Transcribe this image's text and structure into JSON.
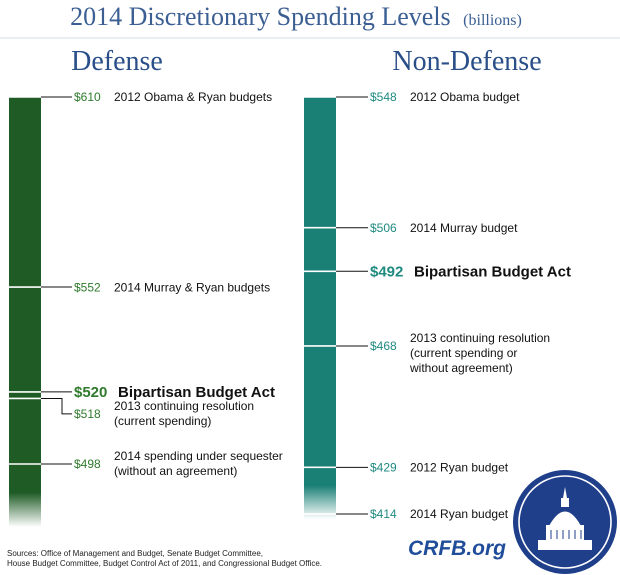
{
  "header": {
    "title": "2014 Discretionary Spending Levels",
    "title_unit": "(billions)"
  },
  "footer": {
    "sources_line1": "Sources: Office of Management and Budget, Senate Budget Committee,",
    "sources_line2": "House Budget Committee, Budget Control Act of 2011, and Congressional Budget Office.",
    "brand": "CRFB.org"
  },
  "colors": {
    "title": "#3b5f93",
    "panel_heading": "#2a4f88",
    "defense_bar": "#1e5b25",
    "defense_value": "#2f7a2c",
    "nondefense_bar": "#1a7f75",
    "nondefense_value": "#1f8a80",
    "brand": "#1f4d99",
    "seal": "#1f3f8a"
  },
  "icons": {
    "seal": "capitol-dome-icon"
  },
  "chart_data": [
    {
      "type": "bar",
      "name": "Defense",
      "unit": "billions",
      "ylim": [
        498,
        610
      ],
      "markers": [
        {
          "value": 610,
          "label": "$610",
          "text": [
            "2012 Obama & Ryan budgets"
          ],
          "bold": false
        },
        {
          "value": 552,
          "label": "$552",
          "text": [
            "2014 Murray & Ryan budgets"
          ],
          "bold": false
        },
        {
          "value": 520,
          "label": "$520",
          "text": [
            "Bipartisan Budget Act"
          ],
          "bold": true
        },
        {
          "value": 518,
          "label": "$518",
          "text": [
            "2013 continuing resolution",
            "(current spending)"
          ],
          "bold": false
        },
        {
          "value": 498,
          "label": "$498",
          "text": [
            "2014 spending under sequester",
            "(without an agreement)"
          ],
          "bold": false
        }
      ]
    },
    {
      "type": "bar",
      "name": "Non-Defense",
      "unit": "billions",
      "ylim": [
        414,
        548
      ],
      "markers": [
        {
          "value": 548,
          "label": "$548",
          "text": [
            "2012 Obama budget"
          ],
          "bold": false
        },
        {
          "value": 506,
          "label": "$506",
          "text": [
            "2014 Murray budget"
          ],
          "bold": false
        },
        {
          "value": 492,
          "label": "$492",
          "text": [
            "Bipartisan Budget Act"
          ],
          "bold": true
        },
        {
          "value": 468,
          "label": "$468",
          "text": [
            "2013 continuing resolution",
            "(current spending or",
            "without agreement)"
          ],
          "bold": false
        },
        {
          "value": 429,
          "label": "$429",
          "text": [
            "2012 Ryan budget"
          ],
          "bold": false
        },
        {
          "value": 414,
          "label": "$414",
          "text": [
            "2014 Ryan budget"
          ],
          "bold": false
        }
      ]
    }
  ]
}
